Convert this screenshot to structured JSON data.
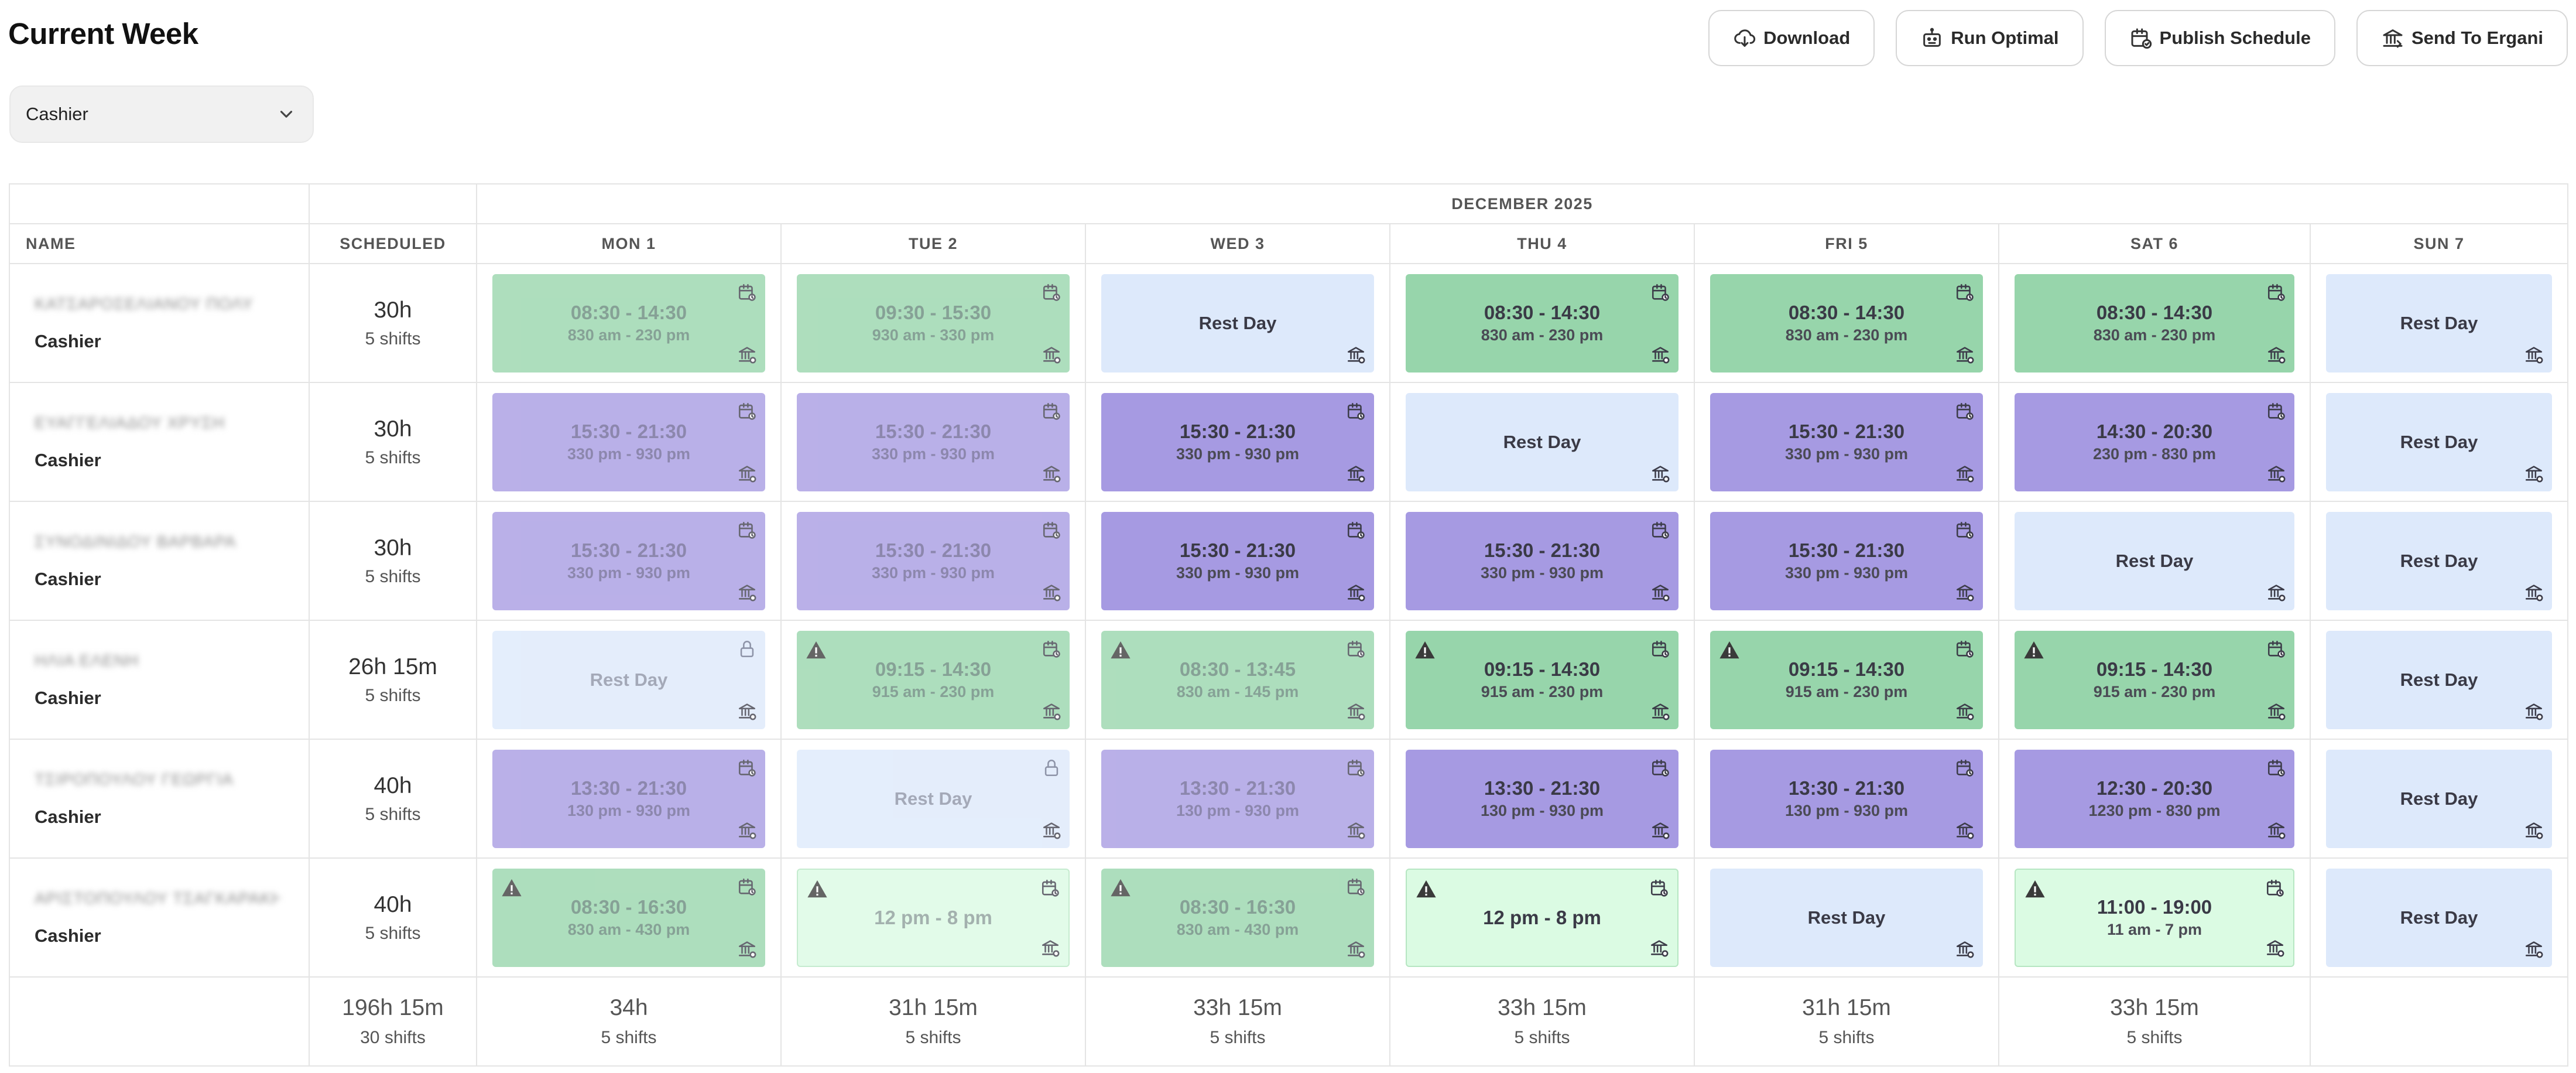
{
  "page": {
    "title": "Current Week"
  },
  "toolbar": {
    "download": "Download",
    "run_optimal": "Run Optimal",
    "publish": "Publish Schedule",
    "send": "Send To Ergani"
  },
  "filter": {
    "selected": "Cashier"
  },
  "table": {
    "month": "DECEMBER 2025",
    "headers": {
      "name": "NAME",
      "scheduled": "SCHEDULED"
    },
    "days": [
      "MON 1",
      "TUE 2",
      "WED 3",
      "THU 4",
      "FRI 5",
      "SAT 6",
      "SUN 7"
    ],
    "rest_label": "Rest Day",
    "employees": [
      {
        "name": "ΚΑΤΣΑΡΟΣΕΛΙΑΝΟΥ ΠΟΛΥ",
        "role": "Cashier",
        "hours": "30h",
        "shifts": "5 shifts",
        "days": [
          {
            "type": "green",
            "faded": true,
            "l1": "08:30 - 14:30",
            "l2": "830 am - 230 pm"
          },
          {
            "type": "green",
            "faded": true,
            "l1": "09:30 - 15:30",
            "l2": "930 am - 330 pm"
          },
          {
            "type": "rest"
          },
          {
            "type": "green",
            "faded": false,
            "l1": "08:30 - 14:30",
            "l2": "830 am - 230 pm"
          },
          {
            "type": "green",
            "faded": false,
            "l1": "08:30 - 14:30",
            "l2": "830 am - 230 pm"
          },
          {
            "type": "green",
            "faded": false,
            "l1": "08:30 - 14:30",
            "l2": "830 am - 230 pm"
          },
          {
            "type": "rest"
          }
        ]
      },
      {
        "name": "ΕΥΑΓΓΕΛΙΑΔΟΥ ΧΡΥΣΗ",
        "role": "Cashier",
        "hours": "30h",
        "shifts": "5 shifts",
        "days": [
          {
            "type": "purple",
            "faded": true,
            "l1": "15:30 - 21:30",
            "l2": "330 pm - 930 pm"
          },
          {
            "type": "purple",
            "faded": true,
            "l1": "15:30 - 21:30",
            "l2": "330 pm - 930 pm"
          },
          {
            "type": "purple",
            "faded": false,
            "l1": "15:30 - 21:30",
            "l2": "330 pm - 930 pm"
          },
          {
            "type": "rest"
          },
          {
            "type": "purple",
            "faded": false,
            "l1": "15:30 - 21:30",
            "l2": "330 pm - 930 pm"
          },
          {
            "type": "purple",
            "faded": false,
            "l1": "14:30 - 20:30",
            "l2": "230 pm - 830 pm"
          },
          {
            "type": "rest"
          }
        ]
      },
      {
        "name": "ΣΥΝΟΔΙΝΙΔΟΥ ΒΑΡΒΑΡΑ",
        "role": "Cashier",
        "hours": "30h",
        "shifts": "5 shifts",
        "days": [
          {
            "type": "purple",
            "faded": true,
            "l1": "15:30 - 21:30",
            "l2": "330 pm - 930 pm"
          },
          {
            "type": "purple",
            "faded": true,
            "l1": "15:30 - 21:30",
            "l2": "330 pm - 930 pm"
          },
          {
            "type": "purple",
            "faded": false,
            "l1": "15:30 - 21:30",
            "l2": "330 pm - 930 pm"
          },
          {
            "type": "purple",
            "faded": false,
            "l1": "15:30 - 21:30",
            "l2": "330 pm - 930 pm"
          },
          {
            "type": "purple",
            "faded": false,
            "l1": "15:30 - 21:30",
            "l2": "330 pm - 930 pm"
          },
          {
            "type": "rest"
          },
          {
            "type": "rest"
          }
        ]
      },
      {
        "name": "ΗΛΙΑ ΕΛΕΝΗ",
        "role": "Cashier",
        "hours": "26h 15m",
        "shifts": "5 shifts",
        "days": [
          {
            "type": "rest",
            "faded": true,
            "lock": true
          },
          {
            "type": "green",
            "faded": true,
            "warn": true,
            "l1": "09:15 - 14:30",
            "l2": "915 am - 230 pm"
          },
          {
            "type": "green",
            "faded": true,
            "warn": true,
            "l1": "08:30 - 13:45",
            "l2": "830 am - 145 pm"
          },
          {
            "type": "green",
            "faded": false,
            "warn": true,
            "l1": "09:15 - 14:30",
            "l2": "915 am - 230 pm"
          },
          {
            "type": "green",
            "faded": false,
            "warn": true,
            "l1": "09:15 - 14:30",
            "l2": "915 am - 230 pm"
          },
          {
            "type": "green",
            "faded": false,
            "warn": true,
            "l1": "09:15 - 14:30",
            "l2": "915 am - 230 pm"
          },
          {
            "type": "rest"
          }
        ]
      },
      {
        "name": "ΤΣΙΡΟΠΟΥΛΟΥ ΓΕΩΡΓΙΑ",
        "role": "Cashier",
        "hours": "40h",
        "shifts": "5 shifts",
        "days": [
          {
            "type": "purple",
            "faded": true,
            "l1": "13:30 - 21:30",
            "l2": "130 pm - 930 pm"
          },
          {
            "type": "rest",
            "faded": true,
            "lock": true
          },
          {
            "type": "purple",
            "faded": true,
            "l1": "13:30 - 21:30",
            "l2": "130 pm - 930 pm"
          },
          {
            "type": "purple",
            "faded": false,
            "l1": "13:30 - 21:30",
            "l2": "130 pm - 930 pm"
          },
          {
            "type": "purple",
            "faded": false,
            "l1": "13:30 - 21:30",
            "l2": "130 pm - 930 pm"
          },
          {
            "type": "purple",
            "faded": false,
            "l1": "12:30 - 20:30",
            "l2": "1230 pm - 830 pm"
          },
          {
            "type": "rest"
          }
        ]
      },
      {
        "name": "ΑΡΙΣΤΟΠΟΥΛΟΥ ΤΣΑΓΚΑΡΑΚΗ ΕΛΕΝΗ",
        "role": "Cashier",
        "hours": "40h",
        "shifts": "5 shifts",
        "days": [
          {
            "type": "green",
            "faded": true,
            "warn": true,
            "l1": "08:30 - 16:30",
            "l2": "830 am - 430 pm"
          },
          {
            "type": "light",
            "faded": true,
            "warn": true,
            "l1": "12 pm - 8 pm",
            "l2": ""
          },
          {
            "type": "green",
            "faded": true,
            "warn": true,
            "l1": "08:30 - 16:30",
            "l2": "830 am - 430 pm"
          },
          {
            "type": "light",
            "faded": false,
            "warn": true,
            "l1": "12 pm - 8 pm",
            "l2": ""
          },
          {
            "type": "rest"
          },
          {
            "type": "light",
            "faded": false,
            "warn": true,
            "l1": "11:00 - 19:00",
            "l2": "11 am - 7 pm"
          },
          {
            "type": "rest"
          }
        ]
      }
    ],
    "totals": {
      "overall": {
        "hours": "196h 15m",
        "shifts": "30 shifts"
      },
      "days": [
        {
          "hours": "34h",
          "shifts": "5 shifts"
        },
        {
          "hours": "31h 15m",
          "shifts": "5 shifts"
        },
        {
          "hours": "33h 15m",
          "shifts": "5 shifts"
        },
        {
          "hours": "33h 15m",
          "shifts": "5 shifts"
        },
        {
          "hours": "31h 15m",
          "shifts": "5 shifts"
        },
        {
          "hours": "33h 15m",
          "shifts": "5 shifts"
        },
        {
          "hours": "",
          "shifts": ""
        }
      ]
    }
  }
}
